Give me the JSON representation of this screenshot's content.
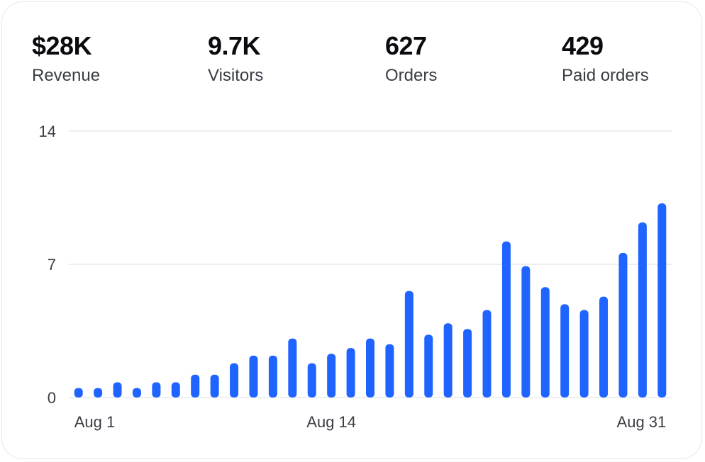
{
  "stats": [
    {
      "value": "$28K",
      "label": "Revenue"
    },
    {
      "value": "9.7K",
      "label": "Visitors"
    },
    {
      "value": "627",
      "label": "Orders"
    },
    {
      "value": "429",
      "label": "Paid orders"
    }
  ],
  "colors": {
    "bar": "#1f64ff",
    "grid": "#eceef2",
    "text": "#3a3d44"
  },
  "chart_data": {
    "type": "bar",
    "categories": [
      "Aug 1",
      "Aug 2",
      "Aug 3",
      "Aug 4",
      "Aug 5",
      "Aug 6",
      "Aug 7",
      "Aug 8",
      "Aug 9",
      "Aug 10",
      "Aug 11",
      "Aug 12",
      "Aug 13",
      "Aug 14",
      "Aug 15",
      "Aug 16",
      "Aug 17",
      "Aug 18",
      "Aug 19",
      "Aug 20",
      "Aug 21",
      "Aug 22",
      "Aug 23",
      "Aug 24",
      "Aug 25",
      "Aug 26",
      "Aug 27",
      "Aug 28",
      "Aug 29",
      "Aug 30",
      "Aug 31"
    ],
    "values": [
      0.5,
      0.5,
      0.8,
      0.5,
      0.8,
      0.8,
      1.2,
      1.2,
      1.8,
      2.2,
      2.2,
      3.1,
      1.8,
      2.3,
      2.6,
      3.1,
      2.8,
      5.6,
      3.3,
      3.9,
      3.6,
      4.6,
      8.2,
      6.9,
      5.8,
      4.9,
      4.6,
      5.3,
      7.6,
      9.2,
      10.2
    ],
    "xtick_labels": [
      "Aug 1",
      "Aug 14",
      "Aug 31"
    ],
    "yticks": [
      0,
      7,
      14
    ],
    "ylim": [
      0,
      14
    ],
    "title": "",
    "xlabel": "",
    "ylabel": "",
    "grid": true,
    "legend": "none"
  }
}
